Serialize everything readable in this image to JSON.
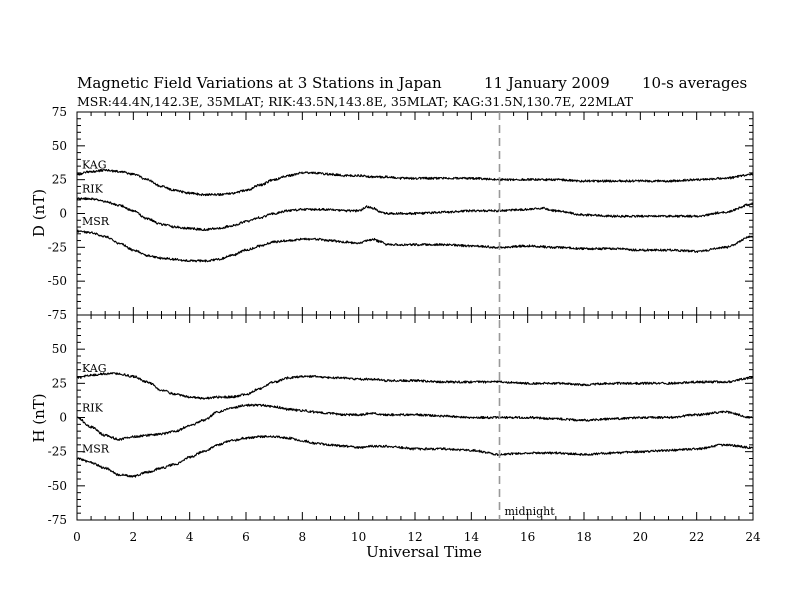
{
  "header": {
    "title": "Magnetic Field Variations at 3 Stations in Japan",
    "date": "11 January 2009",
    "avg": "10-s averages",
    "stations": "MSR:44.4N,142.3E, 35MLAT;  RIK:43.5N,143.8E, 35MLAT;  KAG:31.5N,130.7E, 22MLAT"
  },
  "chart_data": [
    {
      "type": "line",
      "panel": "top",
      "ylabel": "D (nT)",
      "ylim": [
        -75,
        75
      ],
      "yticks": [
        75,
        50,
        25,
        0,
        -25,
        -50,
        -75
      ],
      "xlim": [
        0,
        24
      ],
      "series": [
        {
          "name": "KAG",
          "x": [
            0,
            0.5,
            1,
            1.5,
            2,
            2.5,
            3,
            3.5,
            4,
            4.5,
            5,
            5.5,
            6,
            6.5,
            7,
            7.5,
            8,
            8.5,
            9,
            9.5,
            10,
            10.5,
            11,
            11.5,
            12,
            13,
            14,
            15,
            16,
            17,
            18,
            19,
            20,
            21,
            22,
            23,
            24
          ],
          "y": [
            29,
            31,
            32,
            31,
            29,
            25,
            20,
            17,
            15,
            14,
            14,
            15,
            17,
            21,
            25,
            28,
            30,
            30,
            29,
            28,
            28,
            27,
            27,
            26,
            26,
            26,
            26,
            25,
            25,
            25,
            24,
            24,
            24,
            24,
            25,
            26,
            29
          ]
        },
        {
          "name": "RIK",
          "x": [
            0,
            0.5,
            1,
            1.5,
            2,
            2.5,
            3,
            3.5,
            4,
            4.5,
            5,
            5.5,
            6,
            6.5,
            7,
            7.5,
            8,
            8.5,
            9,
            9.5,
            10,
            10.3,
            10.5,
            10.8,
            11,
            11.5,
            12,
            13,
            14,
            15,
            16,
            16.5,
            17,
            18,
            19,
            20,
            21,
            22,
            23,
            24
          ],
          "y": [
            11,
            11,
            9,
            6,
            2,
            -4,
            -8,
            -10,
            -11,
            -12,
            -11,
            -9,
            -6,
            -3,
            0,
            2,
            3,
            3,
            3,
            2,
            2,
            5,
            4,
            1,
            0,
            0,
            0,
            1,
            2,
            2,
            3,
            4,
            2,
            -1,
            -2,
            -2,
            -2,
            -2,
            1,
            7
          ]
        },
        {
          "name": "MSR",
          "x": [
            0,
            0.5,
            1,
            1.5,
            2,
            2.5,
            3,
            3.5,
            4,
            4.5,
            5,
            5.5,
            6,
            6.5,
            7,
            7.5,
            8,
            8.5,
            9,
            9.5,
            10,
            10.3,
            10.5,
            10.8,
            11,
            11.5,
            12,
            13,
            14,
            15,
            16,
            17,
            18,
            19,
            20,
            21,
            22,
            23,
            24
          ],
          "y": [
            -13,
            -14,
            -17,
            -22,
            -27,
            -31,
            -33,
            -34,
            -35,
            -35,
            -34,
            -31,
            -27,
            -24,
            -21,
            -20,
            -19,
            -19,
            -20,
            -21,
            -22,
            -20,
            -19,
            -21,
            -23,
            -23,
            -23,
            -23,
            -24,
            -25,
            -24,
            -25,
            -26,
            -26,
            -27,
            -27,
            -28,
            -25,
            -17
          ]
        }
      ]
    },
    {
      "type": "line",
      "panel": "bottom",
      "ylabel": "H (nT)",
      "ylim": [
        -75,
        75
      ],
      "yticks": [
        50,
        25,
        0,
        -25,
        -50,
        -75
      ],
      "xlim": [
        0,
        24
      ],
      "xlabel": "Universal Time",
      "xticks": [
        0,
        2,
        4,
        6,
        8,
        10,
        12,
        14,
        16,
        18,
        20,
        22,
        24
      ],
      "series": [
        {
          "name": "KAG",
          "x": [
            0,
            0.5,
            1,
            1.5,
            2,
            2.5,
            3,
            3.5,
            4,
            4.5,
            5,
            5.5,
            6,
            6.5,
            7,
            7.5,
            8,
            8.5,
            9,
            9.5,
            10,
            10.5,
            11,
            11.5,
            12,
            13,
            14,
            15,
            16,
            17,
            18,
            19,
            20,
            21,
            22,
            23,
            24
          ],
          "y": [
            29,
            31,
            32,
            32,
            30,
            26,
            20,
            17,
            15,
            14,
            15,
            15,
            17,
            21,
            26,
            29,
            30,
            30,
            29,
            29,
            28,
            28,
            27,
            27,
            27,
            26,
            26,
            26,
            25,
            25,
            24,
            25,
            25,
            25,
            26,
            26,
            29
          ]
        },
        {
          "name": "RIK",
          "x": [
            0,
            0.5,
            1,
            1.5,
            2,
            2.5,
            3,
            3.5,
            4,
            4.5,
            5,
            5.5,
            6,
            6.5,
            7,
            7.5,
            8,
            8.5,
            9,
            9.5,
            10,
            10.5,
            11,
            11.5,
            12,
            13,
            14,
            15,
            16,
            17,
            18,
            19,
            20,
            21,
            22,
            23,
            24
          ],
          "y": [
            0,
            -7,
            -13,
            -16,
            -14,
            -13,
            -12,
            -10,
            -6,
            -2,
            4,
            7,
            9,
            9,
            8,
            6,
            5,
            4,
            3,
            2,
            2,
            3,
            2,
            2,
            2,
            1,
            0,
            0,
            0,
            -1,
            -2,
            -1,
            0,
            0,
            2,
            4,
            0
          ]
        },
        {
          "name": "MSR",
          "x": [
            0,
            0.5,
            1,
            1.5,
            2,
            2.5,
            3,
            3.5,
            4,
            4.5,
            5,
            5.5,
            6,
            6.5,
            7,
            7.5,
            8,
            8.5,
            9,
            9.5,
            10,
            10.5,
            11,
            11.5,
            12,
            13,
            14,
            15,
            16,
            17,
            18,
            19,
            20,
            21,
            22,
            23,
            24
          ],
          "y": [
            -30,
            -33,
            -37,
            -42,
            -43,
            -40,
            -37,
            -34,
            -29,
            -25,
            -20,
            -17,
            -15,
            -14,
            -14,
            -15,
            -17,
            -19,
            -20,
            -21,
            -22,
            -21,
            -21,
            -22,
            -23,
            -23,
            -24,
            -27,
            -26,
            -26,
            -27,
            -26,
            -25,
            -24,
            -23,
            -20,
            -22
          ]
        }
      ]
    }
  ],
  "annotations": {
    "midnight_label": "midnight",
    "midnight_ut": 15
  }
}
